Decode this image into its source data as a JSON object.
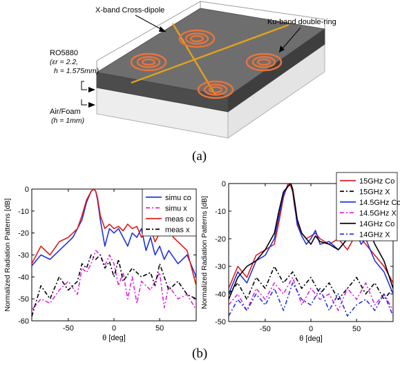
{
  "figure": {
    "caption_a": "(a)",
    "caption_b": "(b)"
  },
  "diagram": {
    "label_cross_dipole": "X-band Cross-dipole",
    "label_double_ring": "Ku-band double-ring",
    "substrate_name": "RO5880",
    "substrate_eps": "(εr = 2.2,",
    "substrate_h": "h = 1.575mm)",
    "spacer_name": "Air/Foam",
    "spacer_h": "(h = 1mm)",
    "colors": {
      "ring": "#e8743a",
      "dipole": "#e0a020",
      "substrate": "#6b6b6b",
      "foam": "#f2f2f2"
    }
  },
  "chart_data": [
    {
      "type": "line",
      "xlabel": "θ [deg]",
      "ylabel": "Normalized Radiation Patterns [dB]",
      "xlim": [
        -90,
        90
      ],
      "ylim": [
        -60,
        0
      ],
      "xticks": [
        -50,
        0,
        50
      ],
      "yticks": [
        0,
        -10,
        -20,
        -30,
        -40,
        -50,
        -60
      ],
      "legend_position": "top-right",
      "series": [
        {
          "name": "simu co",
          "color": "#1f2fe0",
          "dash": "solid",
          "x": [
            -90,
            -80,
            -70,
            -60,
            -50,
            -45,
            -40,
            -35,
            -30,
            -25,
            -22,
            -20,
            -18,
            -15,
            -10,
            -5,
            0,
            5,
            10,
            15,
            20,
            25,
            30,
            35,
            40,
            45,
            50,
            55,
            60,
            70,
            80,
            90
          ],
          "y": [
            -35,
            -30,
            -32,
            -28,
            -24,
            -22,
            -18,
            -14,
            -6,
            -1,
            0,
            -1,
            -5,
            -14,
            -26,
            -18,
            -20,
            -18,
            -22,
            -26,
            -20,
            -22,
            -18,
            -28,
            -22,
            -30,
            -26,
            -32,
            -28,
            -34,
            -30,
            -40
          ]
        },
        {
          "name": "simu x",
          "color": "#e020e0",
          "dash": "dashdot",
          "x": [
            -90,
            -80,
            -70,
            -60,
            -50,
            -40,
            -35,
            -30,
            -25,
            -20,
            -15,
            -10,
            -5,
            0,
            5,
            10,
            15,
            20,
            25,
            30,
            40,
            50,
            55,
            60,
            70,
            80,
            90
          ],
          "y": [
            -55,
            -50,
            -52,
            -46,
            -42,
            -48,
            -36,
            -38,
            -34,
            -28,
            -30,
            -35,
            -30,
            -34,
            -44,
            -38,
            -50,
            -40,
            -52,
            -42,
            -46,
            -38,
            -54,
            -44,
            -50,
            -48,
            -55
          ]
        },
        {
          "name": "meas co",
          "color": "#e01818",
          "dash": "solid",
          "x": [
            -90,
            -80,
            -70,
            -60,
            -50,
            -45,
            -40,
            -35,
            -30,
            -25,
            -22,
            -20,
            -18,
            -15,
            -10,
            -5,
            0,
            5,
            10,
            15,
            20,
            25,
            30,
            35,
            40,
            45,
            50,
            55,
            60,
            65,
            70,
            80,
            90
          ],
          "y": [
            -34,
            -26,
            -30,
            -24,
            -22,
            -20,
            -18,
            -12,
            -5,
            -1,
            0,
            -1,
            -4,
            -12,
            -18,
            -16,
            -18,
            -17,
            -19,
            -16,
            -18,
            -17,
            -22,
            -20,
            -18,
            -24,
            -20,
            -19,
            -16,
            -22,
            -24,
            -28,
            -44
          ]
        },
        {
          "name": "meas x",
          "color": "#000000",
          "dash": "dashdot",
          "x": [
            -90,
            -80,
            -70,
            -60,
            -50,
            -40,
            -35,
            -30,
            -25,
            -20,
            -15,
            -10,
            -5,
            0,
            5,
            10,
            20,
            30,
            40,
            45,
            50,
            60,
            70,
            80,
            90
          ],
          "y": [
            -58,
            -44,
            -50,
            -40,
            -46,
            -42,
            -34,
            -36,
            -30,
            -32,
            -30,
            -36,
            -33,
            -40,
            -32,
            -42,
            -36,
            -40,
            -38,
            -44,
            -34,
            -46,
            -42,
            -48,
            -50
          ]
        }
      ]
    },
    {
      "type": "line",
      "xlabel": "θ [deg]",
      "ylabel": "Normalized Radiation Patterns [dB]",
      "xlim": [
        -90,
        90
      ],
      "ylim": [
        -50,
        0
      ],
      "xticks": [
        -50,
        0,
        50
      ],
      "yticks": [
        0,
        -10,
        -20,
        -30,
        -40,
        -50
      ],
      "legend_position": "top-right",
      "series": [
        {
          "name": "15GHz Co",
          "color": "#e01818",
          "dash": "solid",
          "x": [
            -90,
            -80,
            -70,
            -60,
            -50,
            -40,
            -35,
            -30,
            -25,
            -22,
            -20,
            -18,
            -15,
            -10,
            -5,
            0,
            5,
            10,
            20,
            30,
            40,
            50,
            55,
            60,
            70,
            80,
            90
          ],
          "y": [
            -38,
            -30,
            -34,
            -26,
            -24,
            -22,
            -14,
            -5,
            0,
            -1,
            -3,
            -8,
            -14,
            -18,
            -20,
            -19,
            -18,
            -20,
            -22,
            -20,
            -24,
            -18,
            -20,
            -22,
            -26,
            -30,
            -36
          ]
        },
        {
          "name": "15GHz X",
          "color": "#000000",
          "dash": "dashdot",
          "x": [
            -90,
            -80,
            -70,
            -60,
            -50,
            -40,
            -30,
            -20,
            -10,
            0,
            10,
            20,
            30,
            40,
            50,
            60,
            70,
            80,
            90
          ],
          "y": [
            -40,
            -36,
            -42,
            -34,
            -38,
            -30,
            -36,
            -32,
            -38,
            -34,
            -40,
            -36,
            -42,
            -38,
            -34,
            -40,
            -36,
            -42,
            -38
          ]
        },
        {
          "name": "14.5GHz Co",
          "color": "#1f2fe0",
          "dash": "solid",
          "x": [
            -90,
            -80,
            -70,
            -60,
            -50,
            -40,
            -35,
            -30,
            -25,
            -22,
            -20,
            -18,
            -15,
            -10,
            -5,
            0,
            5,
            10,
            20,
            30,
            40,
            50,
            55,
            60,
            70,
            80,
            90
          ],
          "y": [
            -40,
            -32,
            -36,
            -28,
            -26,
            -20,
            -12,
            -4,
            -1,
            0,
            -2,
            -7,
            -15,
            -19,
            -22,
            -20,
            -17,
            -22,
            -21,
            -24,
            -20,
            -18,
            -22,
            -20,
            -28,
            -32,
            -40
          ]
        },
        {
          "name": "14.5GHz X",
          "color": "#e020e0",
          "dash": "dashdot",
          "x": [
            -90,
            -80,
            -70,
            -60,
            -50,
            -40,
            -30,
            -20,
            -10,
            0,
            10,
            20,
            30,
            40,
            50,
            60,
            70,
            80,
            90
          ],
          "y": [
            -44,
            -40,
            -46,
            -38,
            -42,
            -36,
            -40,
            -34,
            -44,
            -38,
            -42,
            -40,
            -46,
            -38,
            -42,
            -36,
            -44,
            -40,
            -46
          ]
        },
        {
          "name": "14GHz Co",
          "color": "#000000",
          "dash": "solid",
          "x": [
            -90,
            -80,
            -70,
            -60,
            -50,
            -40,
            -35,
            -30,
            -25,
            -22,
            -20,
            -18,
            -15,
            -10,
            -5,
            0,
            5,
            10,
            20,
            30,
            40,
            50,
            55,
            60,
            65,
            70,
            80,
            90
          ],
          "y": [
            -42,
            -34,
            -30,
            -28,
            -24,
            -18,
            -10,
            -3,
            -1,
            0,
            -2,
            -6,
            -13,
            -18,
            -20,
            -22,
            -19,
            -21,
            -22,
            -24,
            -20,
            -17,
            -16,
            -20,
            -18,
            -22,
            -28,
            -38
          ]
        },
        {
          "name": "14GHz X",
          "color": "#1f2fe0",
          "dash": "dashdot",
          "x": [
            -90,
            -80,
            -70,
            -60,
            -50,
            -40,
            -30,
            -20,
            -10,
            0,
            10,
            20,
            30,
            40,
            50,
            60,
            70,
            80,
            90
          ],
          "y": [
            -48,
            -42,
            -46,
            -40,
            -44,
            -38,
            -46,
            -36,
            -42,
            -44,
            -38,
            -46,
            -40,
            -48,
            -44,
            -42,
            -46,
            -40,
            -48
          ]
        }
      ]
    }
  ]
}
